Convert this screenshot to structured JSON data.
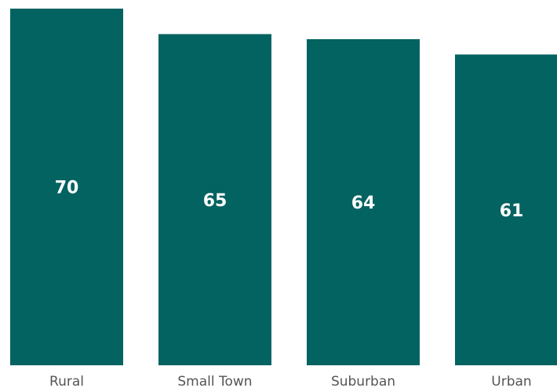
{
  "chart_data": {
    "type": "bar",
    "categories": [
      "Rural",
      "Small Town",
      "Suburban",
      "Urban"
    ],
    "values": [
      70,
      65,
      64,
      61
    ],
    "title": "",
    "xlabel": "",
    "ylabel": "",
    "ylim": [
      0,
      70
    ],
    "grid": false,
    "data_labels": true,
    "bar_color": "#036361",
    "label_color": "#ffffff",
    "tick_color": "#555555"
  }
}
